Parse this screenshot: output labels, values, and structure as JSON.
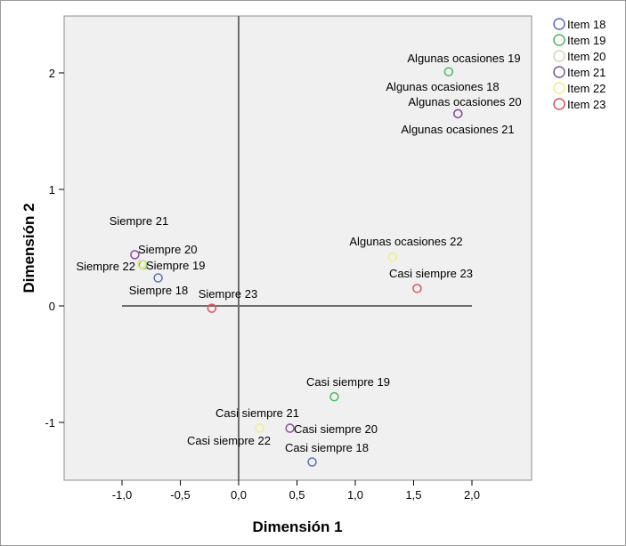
{
  "chart_data": {
    "type": "scatter",
    "xlabel": "Dimensión 1",
    "ylabel": "Dimensión 2",
    "xlim": [
      -1.5,
      2.5
    ],
    "ylim": [
      -1.5,
      2.5
    ],
    "xticks": [
      "-1,0",
      "-0,5",
      "0,0",
      "0,5",
      "1,0",
      "1,5",
      "2,0"
    ],
    "xtick_values": [
      -1.0,
      -0.5,
      0.0,
      0.5,
      1.0,
      1.5,
      2.0
    ],
    "yticks": [
      "-1",
      "0",
      "1",
      "2"
    ],
    "ytick_values": [
      -1,
      0,
      1,
      2
    ],
    "grid": false,
    "reference_lines": {
      "horizontal_y": 0,
      "horizontal_x_range": [
        -1.0,
        2.0
      ],
      "vertical_x": 0
    },
    "legend_position": "right",
    "series": [
      {
        "name": "Item 18",
        "color": "#5a6fb5",
        "points": [
          {
            "label": "Siempre 18",
            "x": -0.69,
            "y": 0.24
          },
          {
            "label": "Algunas ocasiones 18",
            "x": 1.88,
            "y": 1.65
          },
          {
            "label": "Casi siempre 18",
            "x": 0.63,
            "y": -1.34
          }
        ]
      },
      {
        "name": "Item 19",
        "color": "#4cb85a",
        "points": [
          {
            "label": "Siempre 19",
            "x": -0.82,
            "y": 0.35
          },
          {
            "label": "Algunas ocasiones 19",
            "x": 1.8,
            "y": 2.01
          },
          {
            "label": "Casi siempre 19",
            "x": 0.82,
            "y": -0.78
          }
        ]
      },
      {
        "name": "Item 20",
        "color": "#d8d2b8",
        "points": [
          {
            "label": "Siempre 20",
            "x": -0.83,
            "y": 0.36
          },
          {
            "label": "Algunas ocasiones 20",
            "x": 1.88,
            "y": 1.65
          },
          {
            "label": "Casi siempre 20",
            "x": 0.44,
            "y": -1.05
          }
        ]
      },
      {
        "name": "Item 21",
        "color": "#8a4f9a",
        "points": [
          {
            "label": "Siempre 21",
            "x": -0.89,
            "y": 0.44
          },
          {
            "label": "Algunas ocasiones 21",
            "x": 1.88,
            "y": 1.65
          },
          {
            "label": "Casi siempre 21",
            "x": 0.44,
            "y": -1.05
          }
        ]
      },
      {
        "name": "Item 22",
        "color": "#f0ee8a",
        "points": [
          {
            "label": "Siempre 22",
            "x": -0.83,
            "y": 0.35
          },
          {
            "label": "Algunas ocasiones 22",
            "x": 1.32,
            "y": 0.42
          },
          {
            "label": "Casi siempre 22",
            "x": 0.18,
            "y": -1.05
          }
        ]
      },
      {
        "name": "Item 23",
        "color": "#e0525a",
        "points": [
          {
            "label": "Siempre 23",
            "x": -0.23,
            "y": -0.02
          },
          {
            "label": "Casi siempre 23",
            "x": 1.53,
            "y": 0.15
          }
        ]
      }
    ]
  }
}
